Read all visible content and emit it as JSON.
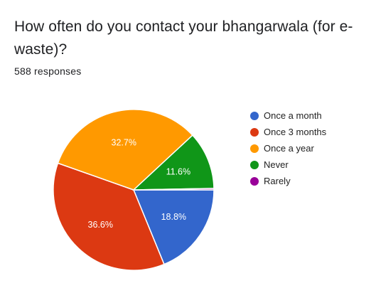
{
  "question": {
    "title": "How often do you contact your bhangarwala (for e-waste)?",
    "responses": "588 responses"
  },
  "chart_data": {
    "type": "pie",
    "categories": [
      "Once a month",
      "Once 3 months",
      "Once a year",
      "Never",
      "Rarely"
    ],
    "values": [
      18.8,
      36.6,
      32.7,
      11.6,
      0.3
    ],
    "labels": [
      "18.8%",
      "36.6%",
      "32.7%",
      "11.6%",
      ""
    ],
    "colors": [
      "#3366cc",
      "#dc3912",
      "#ff9900",
      "#109618",
      "#990099"
    ],
    "legend_position": "right",
    "start": "3 o'clock",
    "direction": "clockwise"
  }
}
